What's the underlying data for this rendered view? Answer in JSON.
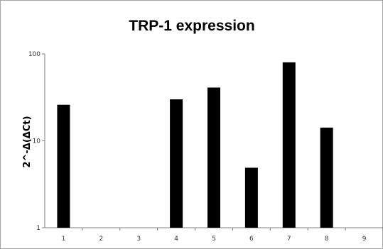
{
  "chart_data": {
    "type": "bar",
    "title": "TRP-1 expression",
    "xlabel": "",
    "ylabel": "2^-Δ(ΔCt)",
    "yscale": "log",
    "ylim": [
      1,
      100
    ],
    "yticks": [
      "1",
      "10",
      "100"
    ],
    "grid": false,
    "legend": "none",
    "categories": [
      "1",
      "2",
      "3",
      "4",
      "5",
      "6",
      "7",
      "8",
      "9"
    ],
    "values": [
      26,
      null,
      null,
      30,
      41,
      4.9,
      80,
      14.2,
      null
    ],
    "colors": {
      "bar": "#000000",
      "axis": "#7f7f7f"
    }
  }
}
